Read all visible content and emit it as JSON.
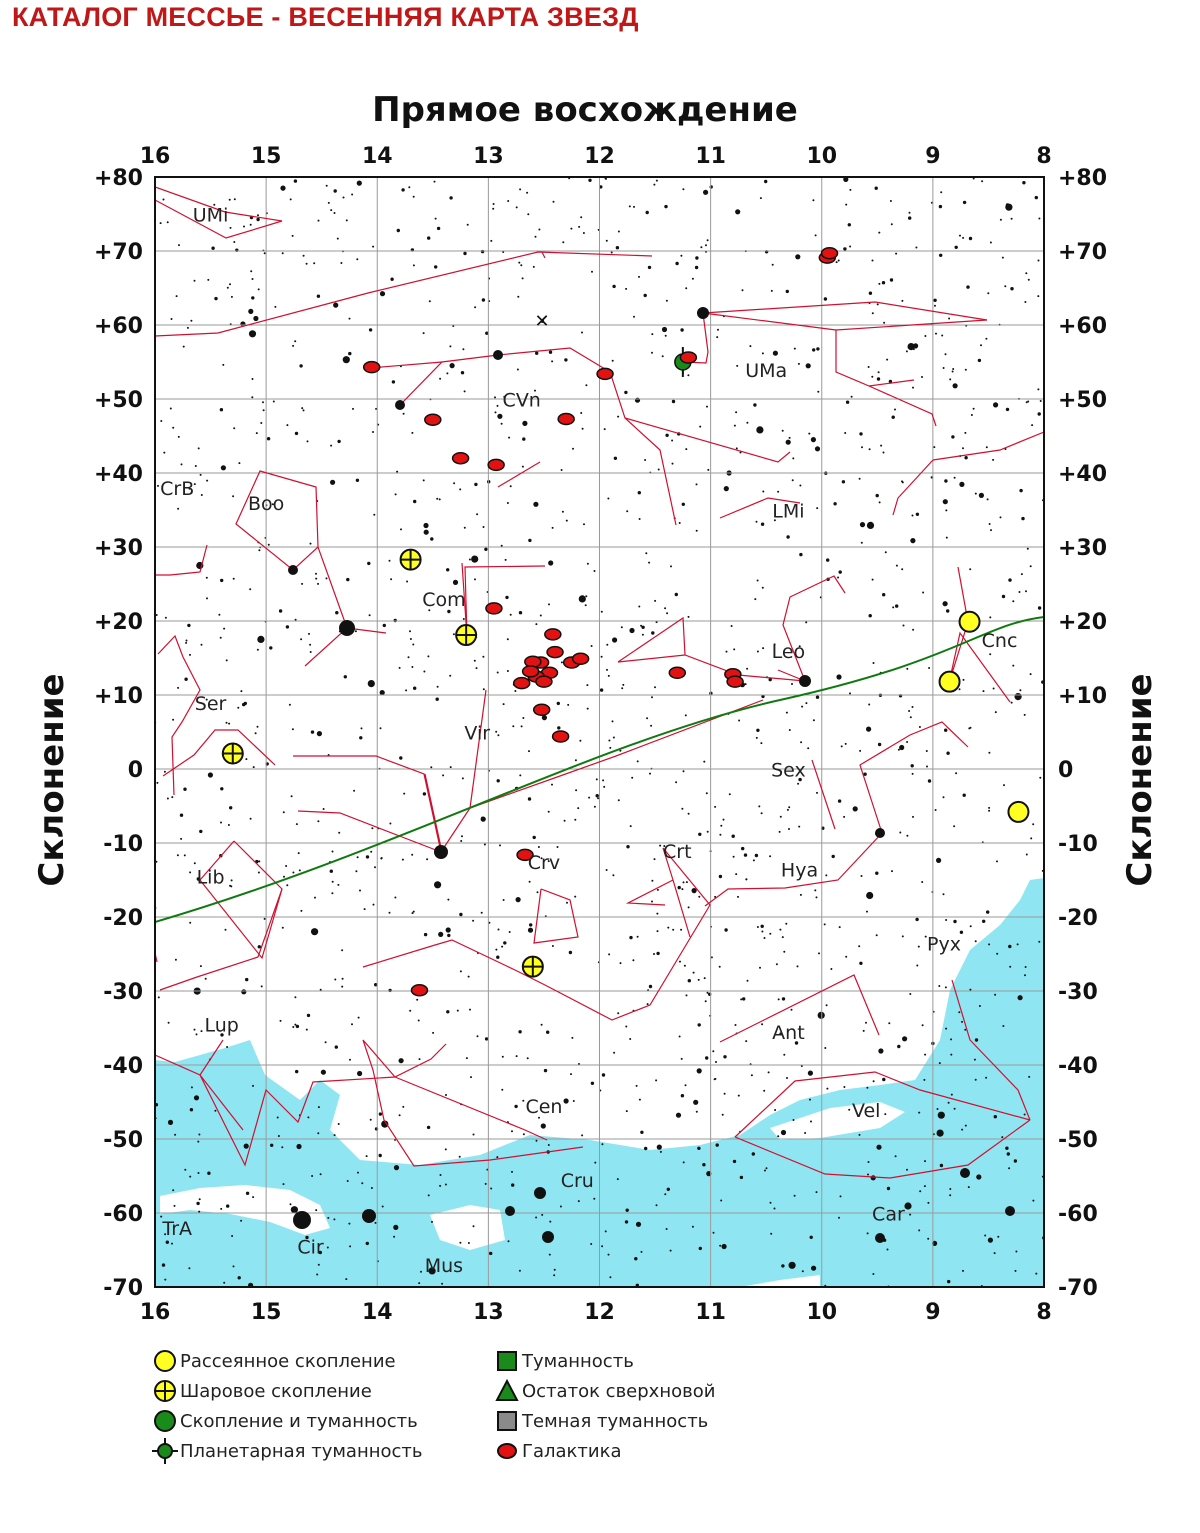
{
  "title": "КАТАЛОГ МЕССЬЕ - ВЕСЕННЯЯ КАРТА ЗВЕЗД",
  "axes": {
    "x_title": "Прямое восхождение",
    "y_title": "Склонение",
    "x_ticks": [
      "16",
      "15",
      "14",
      "13",
      "12",
      "11",
      "10",
      "9",
      "8"
    ],
    "y_ticks": [
      "+80",
      "+70",
      "+60",
      "+50",
      "+40",
      "+30",
      "+20",
      "+10",
      "0",
      "-10",
      "-20",
      "-30",
      "-40",
      "-50",
      "-60",
      "-70"
    ]
  },
  "constellation_labels": [
    {
      "text": "UMi",
      "ra": 15.5,
      "dec": 74
    },
    {
      "text": "UMa",
      "ra": 10.5,
      "dec": 53
    },
    {
      "text": "CVn",
      "ra": 12.7,
      "dec": 49
    },
    {
      "text": "CrB",
      "ra": 15.8,
      "dec": 37
    },
    {
      "text": "Boo",
      "ra": 15.0,
      "dec": 35
    },
    {
      "text": "LMi",
      "ra": 10.3,
      "dec": 34
    },
    {
      "text": "Com",
      "ra": 13.4,
      "dec": 22
    },
    {
      "text": "Leo",
      "ra": 10.3,
      "dec": 15
    },
    {
      "text": "Cnc",
      "ra": 8.4,
      "dec": 16.5
    },
    {
      "text": "Ser",
      "ra": 15.5,
      "dec": 8
    },
    {
      "text": "Vir",
      "ra": 13.1,
      "dec": 4
    },
    {
      "text": "Sex",
      "ra": 10.3,
      "dec": -1
    },
    {
      "text": "Lib",
      "ra": 15.5,
      "dec": -15.5
    },
    {
      "text": "Crv",
      "ra": 12.5,
      "dec": -13.5
    },
    {
      "text": "Crt",
      "ra": 11.3,
      "dec": -12
    },
    {
      "text": "Hya",
      "ra": 10.2,
      "dec": -14.5
    },
    {
      "text": "Pyx",
      "ra": 8.9,
      "dec": -24.5
    },
    {
      "text": "Lup",
      "ra": 15.4,
      "dec": -35.5
    },
    {
      "text": "Ant",
      "ra": 10.3,
      "dec": -36.5
    },
    {
      "text": "Cen",
      "ra": 12.5,
      "dec": -46.5
    },
    {
      "text": "Vel",
      "ra": 9.6,
      "dec": -47
    },
    {
      "text": "Cru",
      "ra": 12.2,
      "dec": -56.5
    },
    {
      "text": "Car",
      "ra": 9.4,
      "dec": -61
    },
    {
      "text": "TrA",
      "ra": 15.8,
      "dec": -63
    },
    {
      "text": "Cir",
      "ra": 14.6,
      "dec": -65.5
    },
    {
      "text": "Mus",
      "ra": 13.4,
      "dec": -68
    }
  ],
  "messier_objects": [
    {
      "type": "open_cluster",
      "ra": 8.67,
      "dec": 19.9
    },
    {
      "type": "open_cluster",
      "ra": 8.85,
      "dec": 11.8
    },
    {
      "type": "open_cluster",
      "ra": 8.23,
      "dec": -5.8
    },
    {
      "type": "globular_cluster",
      "ra": 13.7,
      "dec": 28.3
    },
    {
      "type": "globular_cluster",
      "ra": 13.2,
      "dec": 18.1
    },
    {
      "type": "globular_cluster",
      "ra": 15.3,
      "dec": 2.1
    },
    {
      "type": "globular_cluster",
      "ra": 12.6,
      "dec": -26.7
    },
    {
      "type": "planetary_nebula",
      "ra": 11.25,
      "dec": 55.0
    },
    {
      "type": "galaxy",
      "ra": 14.05,
      "dec": 54.3
    },
    {
      "type": "galaxy",
      "ra": 13.5,
      "dec": 47.2
    },
    {
      "type": "galaxy",
      "ra": 13.25,
      "dec": 42.0
    },
    {
      "type": "galaxy",
      "ra": 12.93,
      "dec": 41.1
    },
    {
      "type": "galaxy",
      "ra": 12.3,
      "dec": 47.3
    },
    {
      "type": "galaxy",
      "ra": 11.95,
      "dec": 53.4
    },
    {
      "type": "galaxy",
      "ra": 11.2,
      "dec": 55.6
    },
    {
      "type": "galaxy",
      "ra": 9.95,
      "dec": 69.1
    },
    {
      "type": "galaxy",
      "ra": 9.93,
      "dec": 69.7
    },
    {
      "type": "galaxy",
      "ra": 12.95,
      "dec": 21.7
    },
    {
      "type": "galaxy",
      "ra": 12.42,
      "dec": 18.2
    },
    {
      "type": "galaxy",
      "ra": 12.4,
      "dec": 15.8
    },
    {
      "type": "galaxy",
      "ra": 12.25,
      "dec": 14.4
    },
    {
      "type": "galaxy",
      "ra": 12.17,
      "dec": 14.9
    },
    {
      "type": "galaxy",
      "ra": 12.53,
      "dec": 14.4
    },
    {
      "type": "galaxy",
      "ra": 12.6,
      "dec": 14.5
    },
    {
      "type": "galaxy",
      "ra": 12.45,
      "dec": 13.0
    },
    {
      "type": "galaxy",
      "ra": 12.57,
      "dec": 12.5
    },
    {
      "type": "galaxy",
      "ra": 12.62,
      "dec": 13.2
    },
    {
      "type": "galaxy",
      "ra": 12.5,
      "dec": 11.8
    },
    {
      "type": "galaxy",
      "ra": 12.7,
      "dec": 11.6
    },
    {
      "type": "galaxy",
      "ra": 12.52,
      "dec": 8.0
    },
    {
      "type": "galaxy",
      "ra": 12.35,
      "dec": 4.4
    },
    {
      "type": "galaxy",
      "ra": 12.67,
      "dec": -11.6
    },
    {
      "type": "galaxy",
      "ra": 11.3,
      "dec": 13.0
    },
    {
      "type": "galaxy",
      "ra": 10.8,
      "dec": 12.8
    },
    {
      "type": "galaxy",
      "ra": 10.78,
      "dec": 11.8
    },
    {
      "type": "galaxy",
      "ra": 13.62,
      "dec": -29.9
    }
  ],
  "colors": {
    "open_cluster": "#ffff22",
    "galaxy": "#e21212",
    "nebula": "#1a8a1a",
    "milky_way": "#8fe6f2",
    "constellation_lines": "#d01030",
    "ecliptic": "#107a10",
    "grid": "#9a9a9a"
  },
  "legend": {
    "left": [
      {
        "icon": "open-cluster-icon",
        "label": "Рассеянное скопление"
      },
      {
        "icon": "globular-cluster-icon",
        "label": "Шаровое скопление"
      },
      {
        "icon": "cluster-nebula-icon",
        "label": "Скопление и туманность"
      },
      {
        "icon": "planetary-nebula-icon",
        "label": "Планетарная туманность"
      }
    ],
    "right": [
      {
        "icon": "nebula-icon",
        "label": "Туманность"
      },
      {
        "icon": "supernova-remnant-icon",
        "label": "Остаток сверхновой"
      },
      {
        "icon": "dark-nebula-icon",
        "label": "Темная туманность"
      },
      {
        "icon": "galaxy-icon",
        "label": "Галактика"
      }
    ]
  }
}
